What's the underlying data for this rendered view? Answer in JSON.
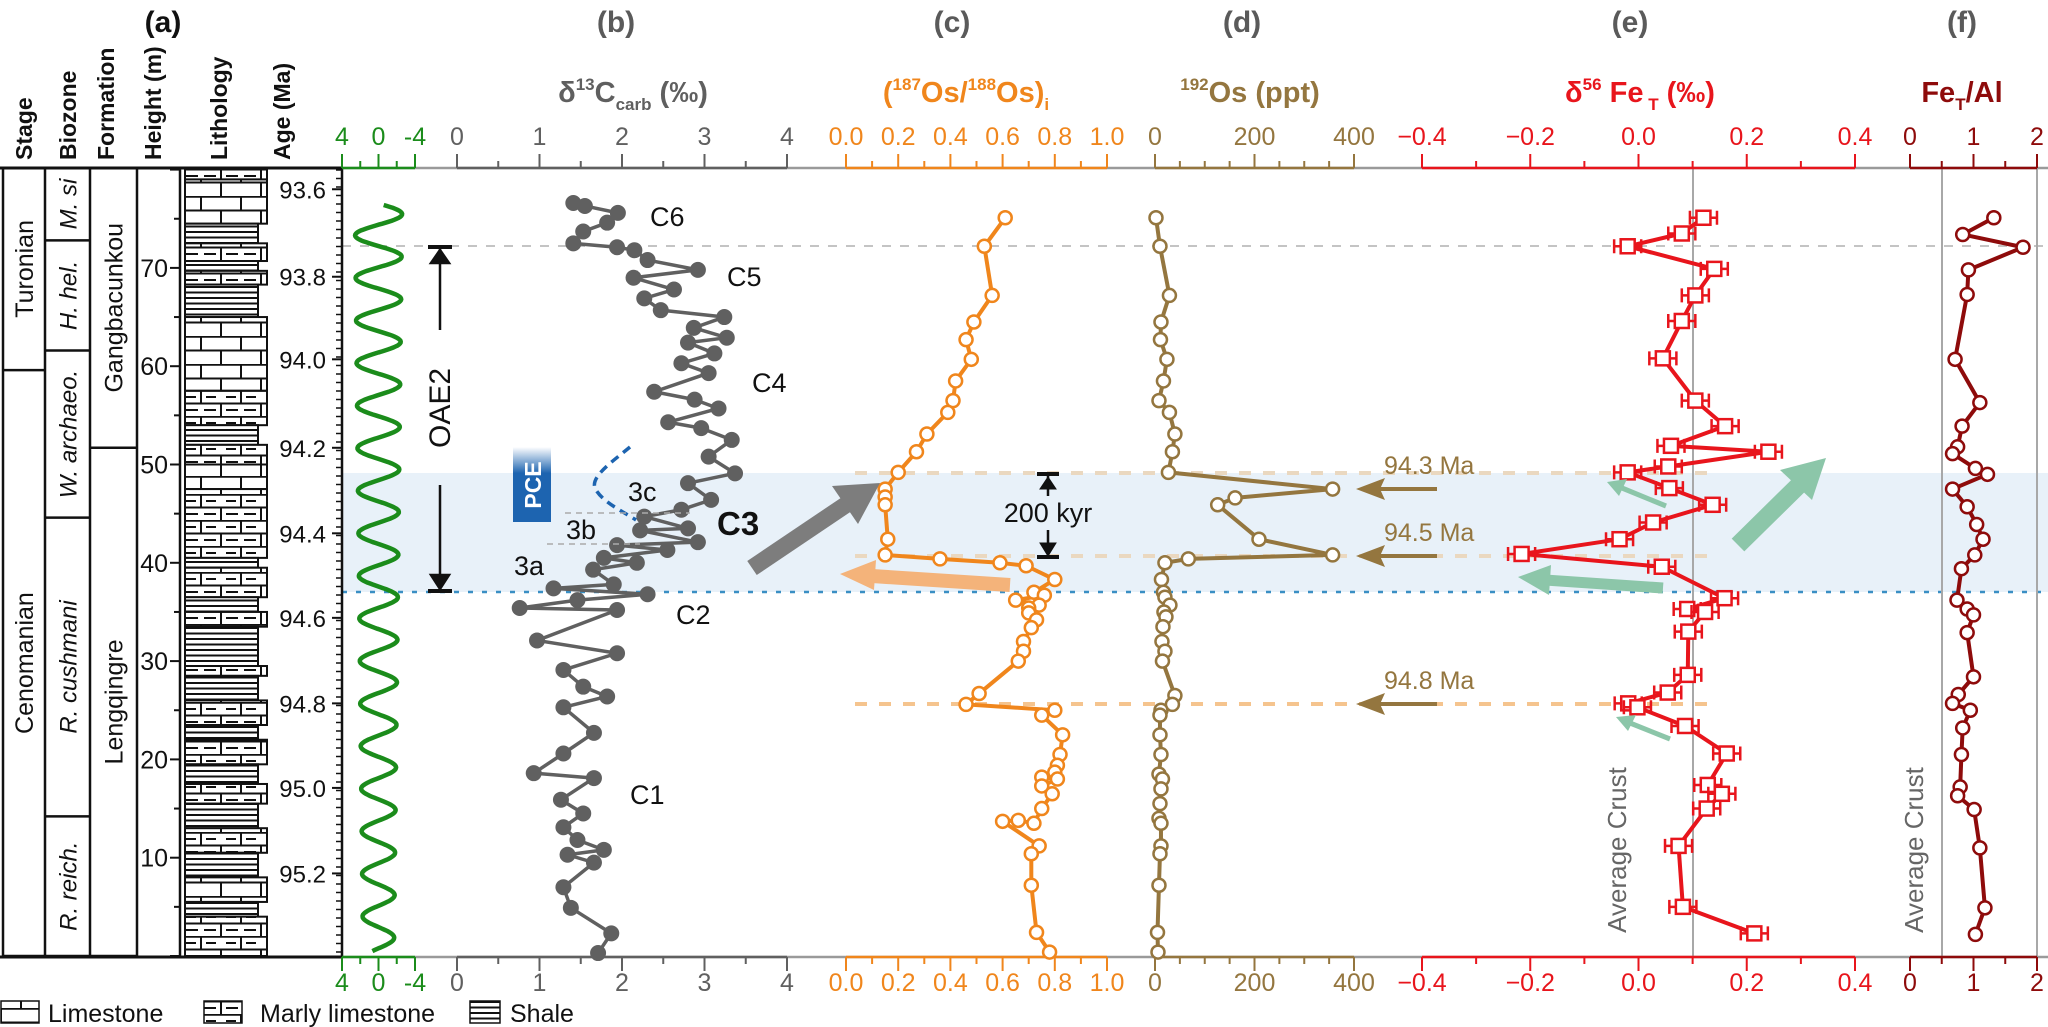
{
  "header": {
    "panel_labels": [
      "(a)",
      "(b)",
      "(c)",
      "(d)",
      "(e)",
      "(f)"
    ],
    "columns": [
      "Stage",
      "Biozone",
      "Formation",
      "Height (m)",
      "Lithology",
      "Age (Ma)"
    ]
  },
  "stratigraphy": {
    "height_range_m": [
      0,
      80.2
    ],
    "height_ticks": [
      10,
      20,
      30,
      40,
      50,
      60,
      70
    ],
    "age_ticks": [
      {
        "label": "93.6",
        "height": 78.0
      },
      {
        "label": "93.8",
        "height": 69.1
      },
      {
        "label": "94.0",
        "height": 60.7
      },
      {
        "label": "94.2",
        "height": 51.7
      },
      {
        "label": "94.4",
        "height": 43.0
      },
      {
        "label": "94.6",
        "height": 34.4
      },
      {
        "label": "94.8",
        "height": 25.7
      },
      {
        "label": "95.0",
        "height": 17.1
      },
      {
        "label": "95.2",
        "height": 8.4
      }
    ],
    "stages": [
      {
        "name": "Turonian",
        "top": 80.2,
        "bottom": 59.6
      },
      {
        "name": "Cenomanian",
        "top": 59.6,
        "bottom": 0
      }
    ],
    "biozones": [
      {
        "name": "M. si",
        "top": 80.2,
        "bottom": 72.8
      },
      {
        "name": "H. hel.",
        "top": 72.8,
        "bottom": 61.6
      },
      {
        "name": "W. archaeo.",
        "top": 61.6,
        "bottom": 44.6
      },
      {
        "name": "R. cushmani",
        "top": 44.6,
        "bottom": 14.2
      },
      {
        "name": "R. reich.",
        "top": 14.2,
        "bottom": 0
      }
    ],
    "formations": [
      {
        "name": "Gangbacunkou",
        "top": 80.2,
        "bottom": 51.7
      },
      {
        "name": "Lengqingre",
        "top": 51.7,
        "bottom": 0
      }
    ],
    "lithology": [
      [
        "marly",
        80.2,
        79.0
      ],
      [
        "limestone",
        79.0,
        74.5
      ],
      [
        "shale",
        74.5,
        72.5
      ],
      [
        "marly",
        72.5,
        70.7
      ],
      [
        "shale",
        70.7,
        69.7
      ],
      [
        "marly",
        69.7,
        68.3
      ],
      [
        "shale",
        68.3,
        65.0
      ],
      [
        "limestone",
        65.0,
        57.5
      ],
      [
        "marly",
        57.5,
        54.0
      ],
      [
        "shale",
        54.0,
        52.0
      ],
      [
        "marly",
        52.0,
        50.0
      ],
      [
        "limestone",
        50.0,
        47.5
      ],
      [
        "marly",
        47.5,
        40.5
      ],
      [
        "shale",
        40.5,
        39.5
      ],
      [
        "marly",
        39.5,
        36.5
      ],
      [
        "shale",
        36.5,
        35.0
      ],
      [
        "marly",
        35.0,
        33.5
      ],
      [
        "shale",
        33.5,
        29.5
      ],
      [
        "marly",
        29.5,
        28.5
      ],
      [
        "shale",
        28.5,
        26.0
      ],
      [
        "marly",
        26.0,
        23.5
      ],
      [
        "shale",
        23.5,
        22.0
      ],
      [
        "marly",
        22.0,
        19.5
      ],
      [
        "shale",
        19.5,
        17.5
      ],
      [
        "marly",
        17.5,
        15.5
      ],
      [
        "shale",
        15.5,
        13.0
      ],
      [
        "marly",
        13.0,
        10.5
      ],
      [
        "shale",
        10.5,
        8.0
      ],
      [
        "limestone",
        8.0,
        5.5
      ],
      [
        "shale",
        5.5,
        4.0
      ],
      [
        "marly",
        4.0,
        0
      ]
    ]
  },
  "legend": [
    {
      "label": "Limestone",
      "type": "limestone"
    },
    {
      "label": "Marly limestone",
      "type": "marly"
    },
    {
      "label": "Shale",
      "type": "shale"
    }
  ],
  "annotations": {
    "oae2": "OAE2",
    "pce": "PCE",
    "c6": "C6",
    "c5": "C5",
    "c4": "C4",
    "c3": "C3",
    "c3a": "3a",
    "c3b": "3b",
    "c3c": "3c",
    "c2": "C2",
    "c1": "C1",
    "duration": "200 kyr",
    "age_943": "94.3 Ma",
    "age_945": "94.5 Ma",
    "age_948": "94.8 Ma",
    "avg_crust_e": "Average Crust",
    "avg_crust_f": "Average Crust"
  },
  "colors": {
    "green": "#1b8c1b",
    "d13c": "#606060",
    "os_ratio": "#f0861c",
    "os192": "#94763f",
    "fe_iso": "#e8151c",
    "fe_al": "#8e0b0b",
    "oae_band": "#e8f1f9",
    "pce": "#1d64b0",
    "teal_arrow": "#8cc6a9"
  },
  "chart_data": [
    {
      "panel": "filter",
      "type": "line",
      "color": "#1b8c1b",
      "xlim": [
        4,
        -4
      ],
      "xticks": [
        "4",
        "0",
        "-4"
      ],
      "shape": "sinusoid",
      "period_m": 4.33,
      "amplitude_top": 2.6,
      "amplitude_bottom": 1.7,
      "height_range_m": [
        0.5,
        76.4
      ]
    },
    {
      "panel": "b",
      "type": "line",
      "color": "#606060",
      "title": {
        "a": "δ",
        "sup": "13",
        "b": "C",
        "sub": "carb",
        "c": " (‰)"
      },
      "xlim": [
        0,
        4
      ],
      "xticks": [
        "0",
        "1",
        "2",
        "3",
        "4"
      ],
      "ylabel": "Height (m)",
      "points": [
        [
          76.6,
          1.41
        ],
        [
          76.3,
          1.55
        ],
        [
          75.6,
          1.95
        ],
        [
          74.6,
          1.82
        ],
        [
          73.7,
          1.53
        ],
        [
          72.5,
          1.41
        ],
        [
          72.1,
          1.94
        ],
        [
          71.8,
          2.15
        ],
        [
          70.8,
          2.31
        ],
        [
          69.8,
          2.92
        ],
        [
          69.0,
          2.14
        ],
        [
          67.8,
          2.63
        ],
        [
          66.9,
          2.27
        ],
        [
          65.7,
          2.47
        ],
        [
          65.0,
          3.24
        ],
        [
          63.9,
          2.87
        ],
        [
          62.9,
          3.27
        ],
        [
          62.4,
          2.8
        ],
        [
          61.3,
          3.12
        ],
        [
          60.3,
          2.72
        ],
        [
          59.3,
          3.05
        ],
        [
          57.4,
          2.39
        ],
        [
          56.6,
          2.88
        ],
        [
          55.7,
          3.17
        ],
        [
          54.3,
          2.56
        ],
        [
          53.7,
          2.96
        ],
        [
          52.5,
          3.33
        ],
        [
          50.8,
          3.05
        ],
        [
          49.1,
          3.37
        ],
        [
          48.1,
          2.8
        ],
        [
          46.4,
          3.08
        ],
        [
          45.4,
          2.72
        ],
        [
          44.7,
          2.27
        ],
        [
          43.5,
          2.8
        ],
        [
          43.3,
          2.22
        ],
        [
          42.1,
          2.92
        ],
        [
          41.8,
          1.94
        ],
        [
          41.3,
          2.55
        ],
        [
          40.5,
          1.78
        ],
        [
          40.0,
          2.18
        ],
        [
          39.3,
          1.65
        ],
        [
          37.8,
          1.9
        ],
        [
          37.4,
          1.17
        ],
        [
          36.8,
          2.31
        ],
        [
          36.2,
          1.46
        ],
        [
          35.4,
          0.76
        ],
        [
          35.2,
          1.94
        ],
        [
          32.1,
          0.97
        ],
        [
          30.8,
          1.94
        ],
        [
          29.1,
          1.29
        ],
        [
          27.4,
          1.53
        ],
        [
          26.4,
          1.82
        ],
        [
          25.3,
          1.29
        ],
        [
          22.7,
          1.66
        ],
        [
          20.6,
          1.29
        ],
        [
          18.6,
          0.93
        ],
        [
          18.1,
          1.66
        ],
        [
          15.9,
          1.26
        ],
        [
          14.5,
          1.53
        ],
        [
          13.1,
          1.29
        ],
        [
          11.8,
          1.46
        ],
        [
          10.8,
          1.78
        ],
        [
          10.3,
          1.34
        ],
        [
          9.5,
          1.66
        ],
        [
          7.0,
          1.29
        ],
        [
          4.9,
          1.38
        ],
        [
          2.3,
          1.87
        ],
        [
          0.3,
          1.71
        ]
      ]
    },
    {
      "panel": "c",
      "type": "line",
      "color": "#f0861c",
      "title": {
        "a": "(",
        "sup": "187",
        "b": "Os/",
        "sup2": "188",
        "c": "Os)",
        "sub": "i"
      },
      "xlim": [
        0,
        1
      ],
      "xticks": [
        "0.0",
        "0.2",
        "0.4",
        "0.6",
        "0.8",
        "1.0"
      ],
      "points": [
        [
          75.1,
          0.61
        ],
        [
          72.2,
          0.53
        ],
        [
          67.2,
          0.56
        ],
        [
          64.5,
          0.49
        ],
        [
          62.7,
          0.46
        ],
        [
          60.7,
          0.48
        ],
        [
          58.5,
          0.42
        ],
        [
          56.5,
          0.41
        ],
        [
          55.3,
          0.39
        ],
        [
          53.1,
          0.31
        ],
        [
          51.3,
          0.27
        ],
        [
          49.2,
          0.2
        ],
        [
          47.5,
          0.15
        ],
        [
          46.7,
          0.15
        ],
        [
          45.9,
          0.15
        ],
        [
          42.4,
          0.16
        ],
        [
          40.8,
          0.15
        ],
        [
          40.4,
          0.36
        ],
        [
          40.0,
          0.59
        ],
        [
          39.7,
          0.69
        ],
        [
          38.3,
          0.8
        ],
        [
          37.0,
          0.72
        ],
        [
          36.7,
          0.76
        ],
        [
          36.2,
          0.65
        ],
        [
          35.7,
          0.74
        ],
        [
          35.4,
          0.7
        ],
        [
          34.9,
          0.7
        ],
        [
          34.2,
          0.73
        ],
        [
          33.4,
          0.71
        ],
        [
          32.0,
          0.68
        ],
        [
          31.0,
          0.68
        ],
        [
          30.0,
          0.66
        ],
        [
          26.7,
          0.51
        ],
        [
          25.6,
          0.46
        ],
        [
          25.0,
          0.8
        ],
        [
          24.5,
          0.75
        ],
        [
          22.5,
          0.83
        ],
        [
          20.5,
          0.82
        ],
        [
          19.4,
          0.81
        ],
        [
          18.7,
          0.8
        ],
        [
          18.2,
          0.75
        ],
        [
          18.0,
          0.81
        ],
        [
          17.3,
          0.75
        ],
        [
          16.5,
          0.79
        ],
        [
          15.0,
          0.75
        ],
        [
          13.5,
          0.72
        ],
        [
          13.8,
          0.66
        ],
        [
          13.7,
          0.6
        ],
        [
          11.2,
          0.74
        ],
        [
          10.4,
          0.71
        ],
        [
          7.2,
          0.71
        ],
        [
          2.4,
          0.73
        ],
        [
          0.4,
          0.78
        ]
      ]
    },
    {
      "panel": "d",
      "type": "line",
      "color": "#94763f",
      "title": {
        "sup": "192",
        "a": "Os (ppt)"
      },
      "xlim": [
        0,
        400
      ],
      "xticks": [
        "0",
        "200",
        "400"
      ],
      "points": [
        [
          75.1,
          2
        ],
        [
          72.2,
          10
        ],
        [
          67.2,
          29
        ],
        [
          64.5,
          12
        ],
        [
          62.7,
          11
        ],
        [
          60.7,
          24
        ],
        [
          58.5,
          17
        ],
        [
          56.5,
          8
        ],
        [
          55.3,
          29
        ],
        [
          53.1,
          40
        ],
        [
          51.3,
          35
        ],
        [
          49.2,
          27
        ],
        [
          47.5,
          357
        ],
        [
          46.6,
          161
        ],
        [
          45.9,
          126
        ],
        [
          42.4,
          209
        ],
        [
          40.8,
          357
        ],
        [
          40.4,
          67
        ],
        [
          40.0,
          20
        ],
        [
          38.3,
          13
        ],
        [
          37.0,
          17
        ],
        [
          36.5,
          20
        ],
        [
          35.7,
          30
        ],
        [
          35.0,
          18
        ],
        [
          34.5,
          22
        ],
        [
          33.5,
          16
        ],
        [
          32.0,
          14
        ],
        [
          31.0,
          20
        ],
        [
          30.0,
          15
        ],
        [
          26.5,
          40
        ],
        [
          25.6,
          35
        ],
        [
          25.0,
          12
        ],
        [
          24.5,
          10
        ],
        [
          22.5,
          10
        ],
        [
          20.5,
          12
        ],
        [
          18.5,
          8
        ],
        [
          18.0,
          15
        ],
        [
          17.0,
          12
        ],
        [
          15.5,
          10
        ],
        [
          14.0,
          8
        ],
        [
          13.5,
          12
        ],
        [
          11.2,
          12
        ],
        [
          10.4,
          10
        ],
        [
          7.2,
          8
        ],
        [
          2.4,
          5
        ],
        [
          0.4,
          6
        ]
      ]
    },
    {
      "panel": "e",
      "type": "line",
      "color": "#e8151c",
      "title": {
        "a": "δ",
        "sup": "56",
        "b": " Fe",
        "sub": " T",
        "c": " (‰)"
      },
      "xlim": [
        -0.4,
        0.4
      ],
      "xticks": [
        "−0.4",
        "−0.2",
        "0.0",
        "0.2",
        "0.4"
      ],
      "reference_line": 0.1,
      "error_bar": 0.025,
      "points": [
        [
          75.1,
          0.12
        ],
        [
          73.5,
          0.08
        ],
        [
          72.2,
          -0.02
        ],
        [
          69.9,
          0.14
        ],
        [
          67.2,
          0.105
        ],
        [
          64.6,
          0.08
        ],
        [
          60.8,
          0.045
        ],
        [
          56.5,
          0.105
        ],
        [
          53.9,
          0.16
        ],
        [
          51.9,
          0.06
        ],
        [
          51.3,
          0.24
        ],
        [
          49.8,
          0.055
        ],
        [
          49.2,
          -0.02
        ],
        [
          47.6,
          0.057
        ],
        [
          45.9,
          0.137
        ],
        [
          44.1,
          0.027
        ],
        [
          42.4,
          -0.035
        ],
        [
          40.9,
          -0.216
        ],
        [
          39.6,
          0.043
        ],
        [
          36.4,
          0.159
        ],
        [
          35.3,
          0.09
        ],
        [
          35.0,
          0.123
        ],
        [
          33.0,
          0.092
        ],
        [
          28.6,
          0.091
        ],
        [
          26.8,
          0.054
        ],
        [
          25.7,
          -0.019
        ],
        [
          25.3,
          -0.002
        ],
        [
          23.4,
          0.086
        ],
        [
          20.6,
          0.163
        ],
        [
          17.4,
          0.128
        ],
        [
          16.5,
          0.154
        ],
        [
          15.0,
          0.126
        ],
        [
          11.2,
          0.074
        ],
        [
          5.0,
          0.082
        ],
        [
          2.3,
          0.214
        ]
      ]
    },
    {
      "panel": "f",
      "type": "line",
      "color": "#8e0b0b",
      "title": {
        "a": "Fe",
        "sub": "T",
        "b": "/Al"
      },
      "xlim": [
        0,
        2
      ],
      "xticks": [
        "0",
        "1",
        "2"
      ],
      "reference_line": 0.5,
      "points": [
        [
          75.1,
          1.32
        ],
        [
          73.4,
          0.83
        ],
        [
          72.1,
          1.78
        ],
        [
          69.8,
          0.92
        ],
        [
          67.3,
          0.9
        ],
        [
          60.7,
          0.71
        ],
        [
          56.3,
          1.1
        ],
        [
          53.9,
          0.82
        ],
        [
          51.8,
          0.75
        ],
        [
          51.1,
          0.67
        ],
        [
          49.6,
          1.03
        ],
        [
          49.0,
          1.22
        ],
        [
          47.5,
          0.67
        ],
        [
          45.7,
          0.9
        ],
        [
          43.9,
          1.05
        ],
        [
          42.4,
          1.15
        ],
        [
          40.8,
          1.02
        ],
        [
          39.4,
          0.81
        ],
        [
          36.2,
          0.74
        ],
        [
          35.3,
          0.9
        ],
        [
          34.7,
          1.0
        ],
        [
          32.9,
          0.9
        ],
        [
          28.4,
          1.0
        ],
        [
          26.6,
          0.76
        ],
        [
          25.7,
          0.67
        ],
        [
          25.0,
          0.95
        ],
        [
          23.2,
          0.83
        ],
        [
          20.5,
          0.81
        ],
        [
          17.2,
          0.79
        ],
        [
          16.3,
          0.75
        ],
        [
          14.9,
          1.01
        ],
        [
          11.0,
          1.1
        ],
        [
          4.9,
          1.18
        ],
        [
          2.2,
          1.03
        ]
      ]
    }
  ]
}
